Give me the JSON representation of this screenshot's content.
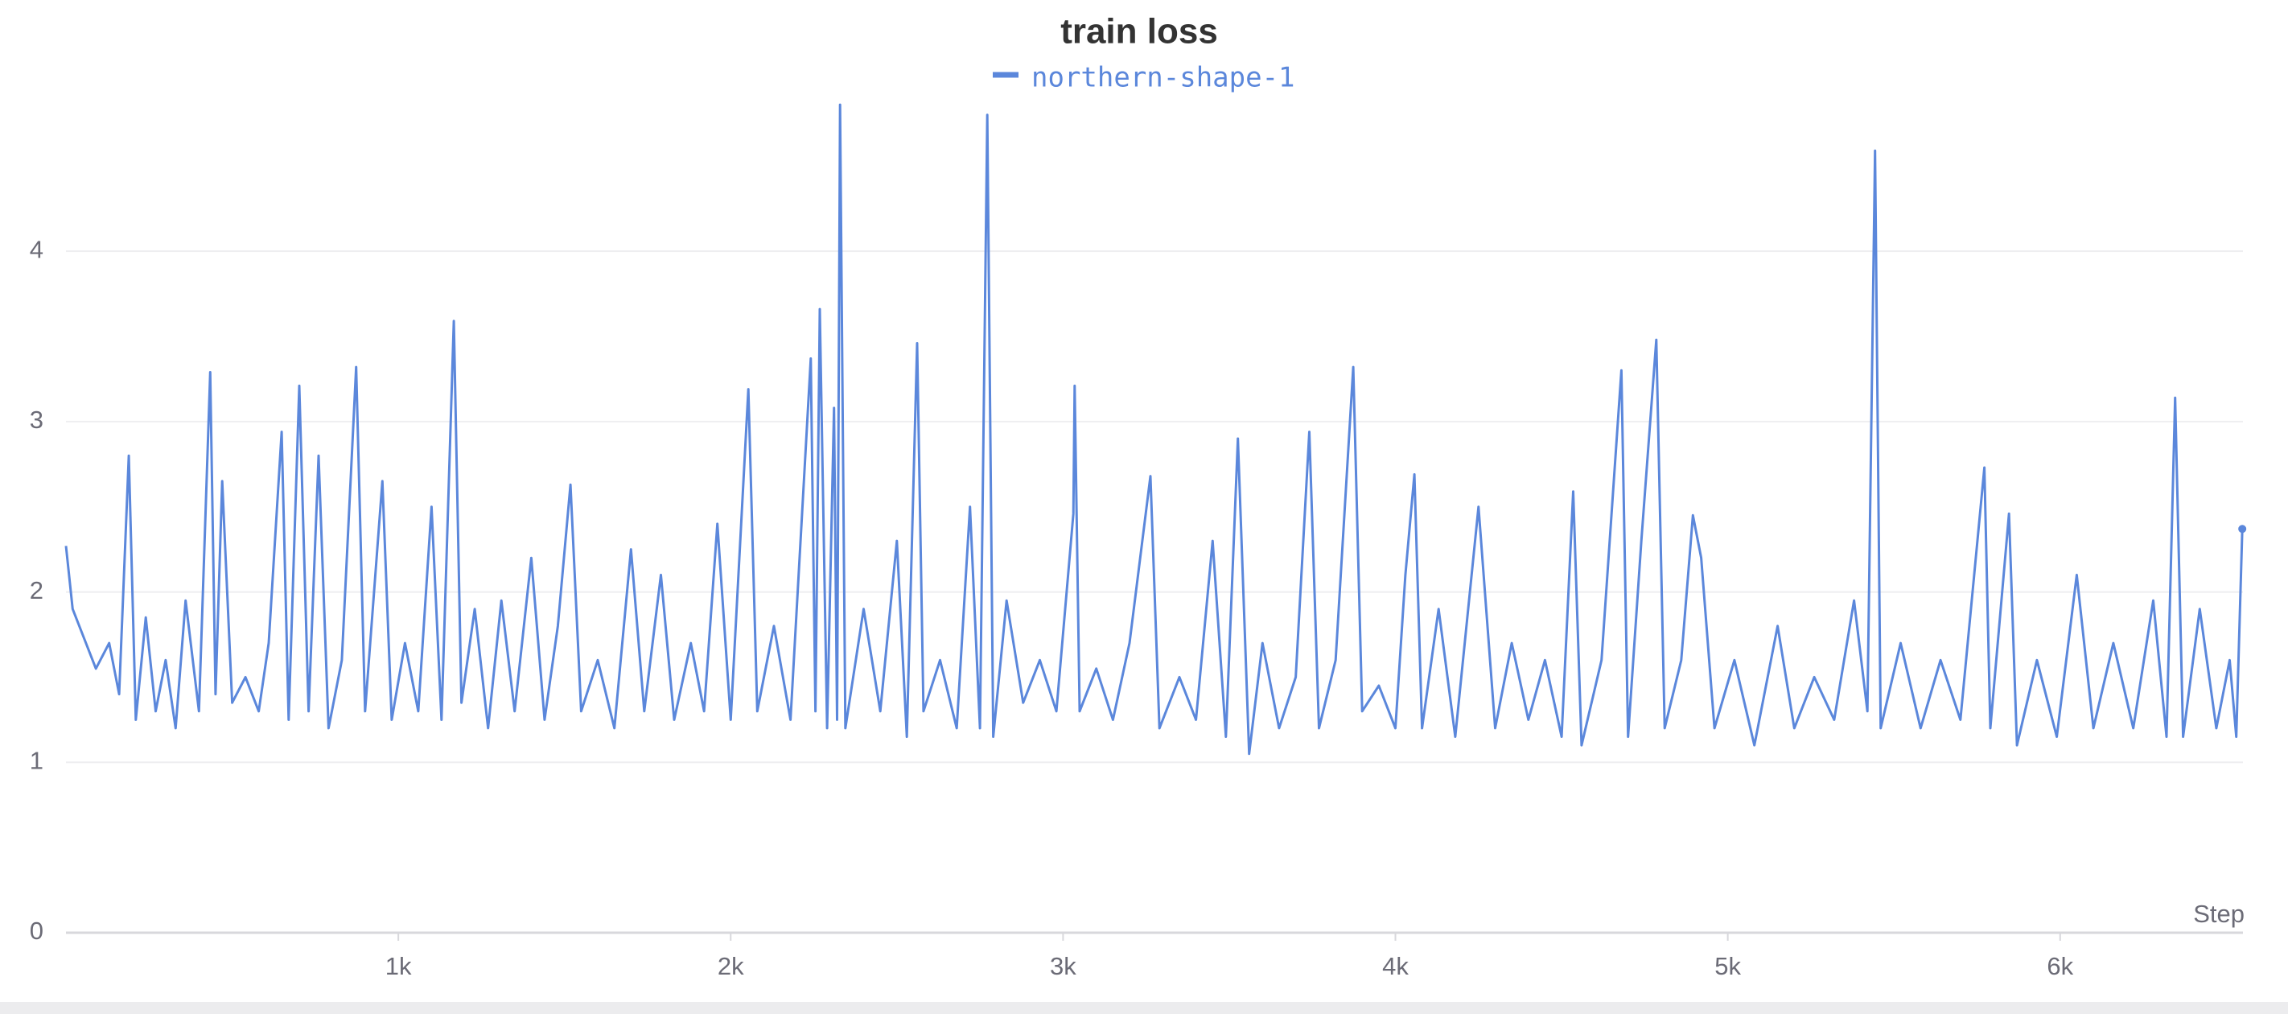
{
  "chart_data": {
    "type": "line",
    "title": "train loss",
    "x_label": "Step",
    "x": [
      0,
      20,
      50,
      90,
      130,
      160,
      189,
      210,
      240,
      270,
      300,
      330,
      360,
      400,
      434,
      450,
      470,
      500,
      540,
      580,
      610,
      649,
      670,
      702,
      730,
      760,
      790,
      830,
      873,
      900,
      952,
      980,
      1020,
      1060,
      1100,
      1130,
      1167,
      1190,
      1230,
      1270,
      1310,
      1350,
      1400,
      1440,
      1480,
      1518,
      1550,
      1600,
      1650,
      1700,
      1740,
      1790,
      1830,
      1880,
      1920,
      1960,
      2000,
      2053,
      2080,
      2130,
      2180,
      2241,
      2255,
      2268,
      2290,
      2311,
      2320,
      2329,
      2345,
      2400,
      2450,
      2500,
      2530,
      2561,
      2580,
      2630,
      2680,
      2720,
      2750,
      2772,
      2790,
      2830,
      2880,
      2930,
      2980,
      3031,
      3035,
      3050,
      3100,
      3150,
      3200,
      3263,
      3290,
      3350,
      3400,
      3450,
      3490,
      3526,
      3560,
      3600,
      3650,
      3700,
      3741,
      3770,
      3820,
      3873,
      3900,
      3950,
      4000,
      4030,
      4057,
      4080,
      4130,
      4180,
      4250,
      4300,
      4350,
      4400,
      4450,
      4500,
      4535,
      4560,
      4620,
      4680,
      4700,
      4740,
      4785,
      4810,
      4860,
      4895,
      4920,
      4960,
      5020,
      5080,
      5150,
      5200,
      5260,
      5320,
      5380,
      5420,
      5443,
      5460,
      5520,
      5580,
      5640,
      5700,
      5772,
      5790,
      5846,
      5870,
      5930,
      5990,
      6050,
      6100,
      6160,
      6220,
      6280,
      6320,
      6346,
      6370,
      6420,
      6470,
      6510,
      6530,
      6548
    ],
    "series": [
      {
        "name": "northern-shape-1",
        "color": "#5b87db",
        "values": [
          2.27,
          1.9,
          1.75,
          1.55,
          1.7,
          1.4,
          2.8,
          1.25,
          1.85,
          1.3,
          1.6,
          1.2,
          1.95,
          1.3,
          3.29,
          1.4,
          2.65,
          1.35,
          1.5,
          1.3,
          1.7,
          2.94,
          1.25,
          3.21,
          1.3,
          2.8,
          1.2,
          1.6,
          3.32,
          1.3,
          2.65,
          1.25,
          1.7,
          1.3,
          2.5,
          1.25,
          3.59,
          1.35,
          1.9,
          1.2,
          1.95,
          1.3,
          2.2,
          1.25,
          1.8,
          2.63,
          1.3,
          1.6,
          1.2,
          2.25,
          1.3,
          2.1,
          1.25,
          1.7,
          1.3,
          2.4,
          1.25,
          3.19,
          1.3,
          1.8,
          1.25,
          3.37,
          1.3,
          3.66,
          1.2,
          3.08,
          1.25,
          4.86,
          1.2,
          1.9,
          1.3,
          2.3,
          1.15,
          3.46,
          1.3,
          1.6,
          1.2,
          2.5,
          1.2,
          4.8,
          1.15,
          1.95,
          1.35,
          1.6,
          1.3,
          2.46,
          3.21,
          1.3,
          1.55,
          1.25,
          1.7,
          2.68,
          1.2,
          1.5,
          1.25,
          2.3,
          1.15,
          2.9,
          1.05,
          1.7,
          1.2,
          1.5,
          2.94,
          1.2,
          1.6,
          3.32,
          1.3,
          1.45,
          1.2,
          2.1,
          2.69,
          1.2,
          1.9,
          1.15,
          2.5,
          1.2,
          1.7,
          1.25,
          1.6,
          1.15,
          2.59,
          1.1,
          1.6,
          3.3,
          1.15,
          2.3,
          3.48,
          1.2,
          1.6,
          2.45,
          2.2,
          1.2,
          1.6,
          1.1,
          1.8,
          1.2,
          1.5,
          1.25,
          1.95,
          1.3,
          4.59,
          1.2,
          1.7,
          1.2,
          1.6,
          1.25,
          2.73,
          1.2,
          2.46,
          1.1,
          1.6,
          1.15,
          2.1,
          1.2,
          1.7,
          1.2,
          1.95,
          1.15,
          3.14,
          1.15,
          1.9,
          1.2,
          1.6,
          1.15,
          2.37
        ]
      }
    ],
    "xlim": [
      0,
      6550
    ],
    "ylim": [
      0,
      4.95
    ],
    "xticks": [
      {
        "value": 1000,
        "label": "1k"
      },
      {
        "value": 2000,
        "label": "2k"
      },
      {
        "value": 3000,
        "label": "3k"
      },
      {
        "value": 4000,
        "label": "4k"
      },
      {
        "value": 5000,
        "label": "5k"
      },
      {
        "value": 6000,
        "label": "6k"
      }
    ],
    "yticks": [
      0,
      1,
      2,
      3,
      4
    ],
    "grid": true
  }
}
